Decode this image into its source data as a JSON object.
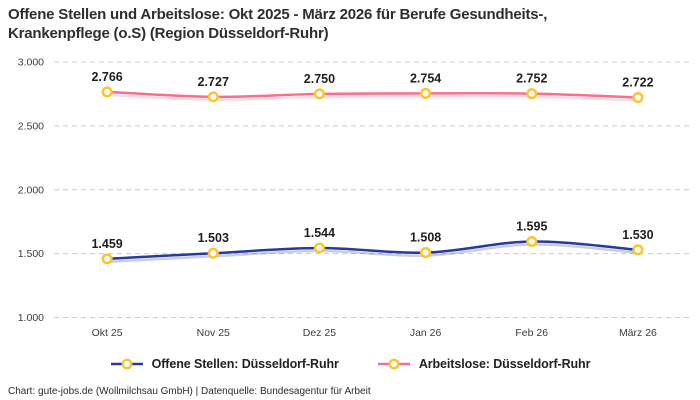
{
  "title": {
    "line1": "Offene Stellen und Arbeitslose: Okt 2025 - März 2026 für Berufe Gesundheits-,",
    "line2": "Krankenpflege (o.S) (Region Düsseldorf-Ruhr)"
  },
  "chart_data": {
    "type": "line",
    "title": "Offene Stellen und Arbeitslose: Okt 2025 - März 2026 für Berufe Gesundheits-, Krankenpflege (o.S) (Region Düsseldorf-Ruhr)",
    "categories": [
      "Okt 25",
      "Nov 25",
      "Dez 25",
      "Jan 26",
      "Feb 26",
      "März 26"
    ],
    "series": [
      {
        "name": "Offene Stellen: Düsseldorf-Ruhr",
        "color": "#263a9b",
        "values": [
          1459,
          1503,
          1544,
          1508,
          1595,
          1530
        ],
        "labels": [
          "1.459",
          "1.503",
          "1.544",
          "1.508",
          "1.595",
          "1.530"
        ]
      },
      {
        "name": "Arbeitslose: Düsseldorf-Ruhr",
        "color": "#f76e8e",
        "values": [
          2766,
          2727,
          2750,
          2754,
          2752,
          2722
        ],
        "labels": [
          "2.766",
          "2.727",
          "2.750",
          "2.754",
          "2.752",
          "2.722"
        ]
      }
    ],
    "ylim": [
      1000,
      3000
    ],
    "y_ticks": [
      {
        "value": 3000,
        "label": "3.000"
      },
      {
        "value": 2500,
        "label": "2.500"
      },
      {
        "value": 2000,
        "label": "2.000"
      },
      {
        "value": 1500,
        "label": "1.500"
      },
      {
        "value": 1000,
        "label": "1.000"
      }
    ],
    "grid": "dashed-horizontal",
    "legend_position": "bottom",
    "colors": {
      "marker": "#fbc531",
      "marker_fill": "#ffffff",
      "grid": "#cccccc"
    }
  },
  "legend": {
    "items": [
      {
        "label": "Offene Stellen: Düsseldorf-Ruhr"
      },
      {
        "label": "Arbeitslose: Düsseldorf-Ruhr"
      }
    ]
  },
  "footer": {
    "text": "Chart: gute-jobs.de (Wollmilchsau GmbH) | Datenquelle: Bundesagentur für Arbeit"
  }
}
